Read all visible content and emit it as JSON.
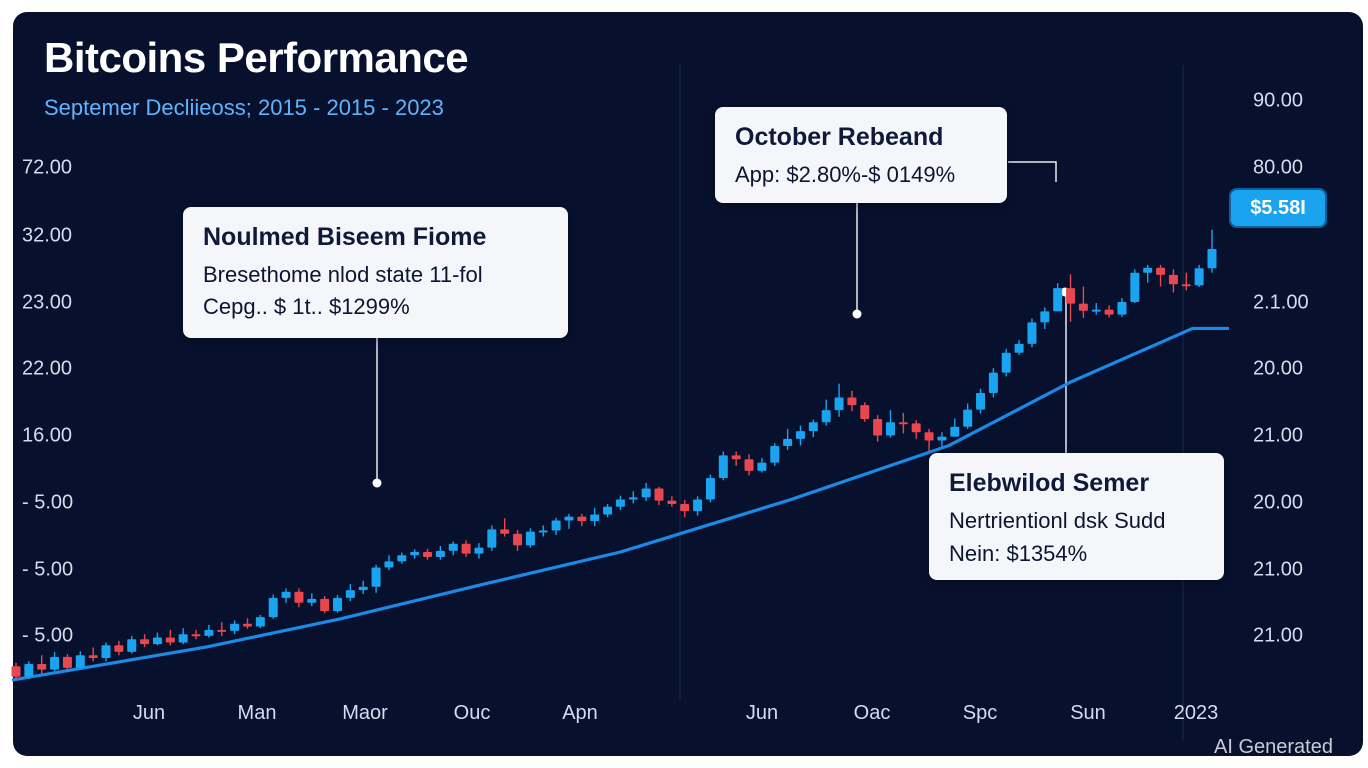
{
  "header": {
    "title": "Bitcoins Performance",
    "subtitle": "Septemer Decliieoss; 2015 - 2015 - 2023"
  },
  "watermark": "AI Generated",
  "price_tag": "$5.58I",
  "colors": {
    "background": "#07112e",
    "up": "#1aa3ee",
    "down": "#e8474f",
    "trend": "#1a8ae6",
    "subtitle": "#5fb3ff"
  },
  "callouts": [
    {
      "title": "Noulmed Biseem Fiome",
      "lines": [
        "Bresethome nlod state 11-fol",
        "Cepg.. $ 1t.. $1299%"
      ]
    },
    {
      "title": "October Rebeand",
      "lines": [
        "App: $2.80%-$ 0149%"
      ]
    },
    {
      "title": "Elebwilod Semer",
      "lines": [
        "Nertrientionl dsk Sudd",
        "Nein: $1354%"
      ]
    }
  ],
  "chart_data": {
    "type": "candlestick",
    "title": "Bitcoins Performance",
    "subtitle": "Septemer Decliieoss; 2015 - 2015 - 2023",
    "grid": false,
    "y_ticks_left": [
      "72.00",
      "32.00",
      "23.00",
      "22.00",
      "16.00",
      "- 5.00",
      "- 5.00",
      "- 5.00"
    ],
    "y_ticks_right": [
      "90.00",
      "80.00",
      "",
      "2.1.00",
      "20.00",
      "21.00",
      "20.00",
      "21.00",
      "21.00"
    ],
    "x_ticks": [
      "Jun",
      "Man",
      "Maor",
      "Ouc",
      "Apn",
      "Jun",
      "Oac",
      "Spc",
      "Sun",
      "2023"
    ],
    "level_scale": "0 = bottom of plot, 100 = top of plot (axis labels are not monotonic)",
    "candles": [
      {
        "o": 4.3,
        "c": 2.4,
        "h": 4.9,
        "l": 2.0
      },
      {
        "o": 2.4,
        "c": 4.7,
        "h": 5.2,
        "l": 2.0
      },
      {
        "o": 4.7,
        "c": 3.7,
        "h": 6.3,
        "l": 2.9
      },
      {
        "o": 3.7,
        "c": 6.0,
        "h": 6.9,
        "l": 3.4
      },
      {
        "o": 6.0,
        "c": 4.0,
        "h": 6.5,
        "l": 3.2
      },
      {
        "o": 4.0,
        "c": 6.3,
        "h": 7.0,
        "l": 3.7
      },
      {
        "o": 6.3,
        "c": 5.8,
        "h": 7.7,
        "l": 5.2
      },
      {
        "o": 5.8,
        "c": 8.1,
        "h": 8.6,
        "l": 5.2
      },
      {
        "o": 8.1,
        "c": 6.9,
        "h": 8.9,
        "l": 6.3
      },
      {
        "o": 6.9,
        "c": 9.2,
        "h": 9.8,
        "l": 6.6
      },
      {
        "o": 9.2,
        "c": 8.3,
        "h": 10.1,
        "l": 7.8
      },
      {
        "o": 8.3,
        "c": 9.5,
        "h": 10.4,
        "l": 8.1
      },
      {
        "o": 9.5,
        "c": 8.6,
        "h": 10.9,
        "l": 8.1
      },
      {
        "o": 8.6,
        "c": 10.1,
        "h": 11.2,
        "l": 8.3
      },
      {
        "o": 10.1,
        "c": 9.8,
        "h": 10.9,
        "l": 9.2
      },
      {
        "o": 9.8,
        "c": 10.9,
        "h": 11.8,
        "l": 9.5
      },
      {
        "o": 10.9,
        "c": 10.7,
        "h": 12.3,
        "l": 9.8
      },
      {
        "o": 10.7,
        "c": 12.0,
        "h": 12.6,
        "l": 10.1
      },
      {
        "o": 12.0,
        "c": 11.5,
        "h": 13.0,
        "l": 11.1
      },
      {
        "o": 11.5,
        "c": 13.2,
        "h": 13.6,
        "l": 11.2
      },
      {
        "o": 13.2,
        "c": 16.7,
        "h": 17.3,
        "l": 12.9
      },
      {
        "o": 16.7,
        "c": 17.8,
        "h": 18.4,
        "l": 15.8
      },
      {
        "o": 17.8,
        "c": 15.8,
        "h": 18.4,
        "l": 15.0
      },
      {
        "o": 15.8,
        "c": 16.5,
        "h": 17.5,
        "l": 15.2
      },
      {
        "o": 16.5,
        "c": 14.3,
        "h": 17.0,
        "l": 13.9
      },
      {
        "o": 14.3,
        "c": 16.7,
        "h": 17.2,
        "l": 14.0
      },
      {
        "o": 16.7,
        "c": 18.1,
        "h": 19.2,
        "l": 16.1
      },
      {
        "o": 18.1,
        "c": 18.7,
        "h": 19.8,
        "l": 17.4
      },
      {
        "o": 18.7,
        "c": 22.2,
        "h": 22.7,
        "l": 17.6
      },
      {
        "o": 22.2,
        "c": 23.3,
        "h": 24.4,
        "l": 21.7
      },
      {
        "o": 23.3,
        "c": 24.4,
        "h": 24.9,
        "l": 22.9
      },
      {
        "o": 24.4,
        "c": 25.0,
        "h": 25.5,
        "l": 23.8
      },
      {
        "o": 25.0,
        "c": 24.1,
        "h": 25.6,
        "l": 23.6
      },
      {
        "o": 24.1,
        "c": 25.2,
        "h": 26.1,
        "l": 23.6
      },
      {
        "o": 25.2,
        "c": 26.5,
        "h": 26.9,
        "l": 24.4
      },
      {
        "o": 26.5,
        "c": 24.7,
        "h": 27.1,
        "l": 24.1
      },
      {
        "o": 24.7,
        "c": 25.8,
        "h": 26.6,
        "l": 23.8
      },
      {
        "o": 25.8,
        "c": 29.1,
        "h": 29.8,
        "l": 25.2
      },
      {
        "o": 29.1,
        "c": 28.3,
        "h": 31.1,
        "l": 27.8
      },
      {
        "o": 28.3,
        "c": 26.2,
        "h": 29.0,
        "l": 25.2
      },
      {
        "o": 26.2,
        "c": 28.7,
        "h": 29.3,
        "l": 25.8
      },
      {
        "o": 28.7,
        "c": 28.9,
        "h": 29.8,
        "l": 27.8
      },
      {
        "o": 28.9,
        "c": 30.7,
        "h": 31.2,
        "l": 28.1
      },
      {
        "o": 30.7,
        "c": 31.4,
        "h": 31.9,
        "l": 29.2
      },
      {
        "o": 31.4,
        "c": 30.6,
        "h": 31.9,
        "l": 29.7
      },
      {
        "o": 30.6,
        "c": 31.8,
        "h": 33.0,
        "l": 29.7
      },
      {
        "o": 31.8,
        "c": 33.2,
        "h": 33.7,
        "l": 31.3
      },
      {
        "o": 33.2,
        "c": 34.5,
        "h": 35.2,
        "l": 32.6
      },
      {
        "o": 34.5,
        "c": 34.9,
        "h": 36.0,
        "l": 33.8
      },
      {
        "o": 34.9,
        "c": 36.5,
        "h": 37.5,
        "l": 34.2
      },
      {
        "o": 36.5,
        "c": 34.3,
        "h": 36.8,
        "l": 33.5
      },
      {
        "o": 34.3,
        "c": 33.7,
        "h": 35.1,
        "l": 33.2
      },
      {
        "o": 33.7,
        "c": 32.4,
        "h": 34.4,
        "l": 31.3
      },
      {
        "o": 32.4,
        "c": 34.5,
        "h": 35.1,
        "l": 31.6
      },
      {
        "o": 34.5,
        "c": 38.4,
        "h": 39.0,
        "l": 34.0
      },
      {
        "o": 38.4,
        "c": 42.5,
        "h": 43.2,
        "l": 38.0
      },
      {
        "o": 42.5,
        "c": 41.8,
        "h": 43.2,
        "l": 40.6
      },
      {
        "o": 41.8,
        "c": 39.7,
        "h": 42.7,
        "l": 38.9
      },
      {
        "o": 39.7,
        "c": 41.2,
        "h": 42.0,
        "l": 39.4
      },
      {
        "o": 41.2,
        "c": 44.2,
        "h": 44.7,
        "l": 40.6
      },
      {
        "o": 44.2,
        "c": 45.5,
        "h": 47.3,
        "l": 43.5
      },
      {
        "o": 45.5,
        "c": 46.9,
        "h": 47.9,
        "l": 44.3
      },
      {
        "o": 46.9,
        "c": 48.5,
        "h": 49.0,
        "l": 45.8
      },
      {
        "o": 48.5,
        "c": 50.7,
        "h": 52.6,
        "l": 47.9
      },
      {
        "o": 50.7,
        "c": 53.0,
        "h": 55.5,
        "l": 49.5
      },
      {
        "o": 53.0,
        "c": 51.6,
        "h": 54.2,
        "l": 50.5
      },
      {
        "o": 51.6,
        "c": 49.1,
        "h": 52.1,
        "l": 48.6
      },
      {
        "o": 49.1,
        "c": 46.1,
        "h": 49.8,
        "l": 45.0
      },
      {
        "o": 46.1,
        "c": 48.5,
        "h": 50.7,
        "l": 45.7
      },
      {
        "o": 48.5,
        "c": 48.3,
        "h": 50.2,
        "l": 46.5
      },
      {
        "o": 48.3,
        "c": 46.7,
        "h": 48.9,
        "l": 45.5
      },
      {
        "o": 46.7,
        "c": 45.2,
        "h": 47.3,
        "l": 43.2
      },
      {
        "o": 45.2,
        "c": 45.9,
        "h": 46.7,
        "l": 44.1
      },
      {
        "o": 45.9,
        "c": 47.7,
        "h": 49.2,
        "l": 45.9
      },
      {
        "o": 47.7,
        "c": 50.8,
        "h": 51.9,
        "l": 47.3
      },
      {
        "o": 50.8,
        "c": 53.8,
        "h": 54.6,
        "l": 50.1
      },
      {
        "o": 53.8,
        "c": 57.5,
        "h": 58.3,
        "l": 53.0
      },
      {
        "o": 57.5,
        "c": 61.1,
        "h": 61.8,
        "l": 56.8
      },
      {
        "o": 61.1,
        "c": 62.7,
        "h": 63.4,
        "l": 60.7
      },
      {
        "o": 62.7,
        "c": 66.6,
        "h": 67.3,
        "l": 62.1
      },
      {
        "o": 66.6,
        "c": 68.6,
        "h": 69.3,
        "l": 65.4
      },
      {
        "o": 68.6,
        "c": 72.8,
        "h": 73.7,
        "l": 68.6
      },
      {
        "o": 72.8,
        "c": 70.0,
        "h": 75.3,
        "l": 66.7
      },
      {
        "o": 70.0,
        "c": 68.7,
        "h": 73.1,
        "l": 67.4
      },
      {
        "o": 68.7,
        "c": 68.9,
        "h": 70.1,
        "l": 68.0
      },
      {
        "o": 68.9,
        "c": 68.0,
        "h": 69.7,
        "l": 67.5
      },
      {
        "o": 68.0,
        "c": 70.3,
        "h": 71.0,
        "l": 67.6
      },
      {
        "o": 70.3,
        "c": 75.6,
        "h": 76.2,
        "l": 70.1
      },
      {
        "o": 75.6,
        "c": 76.5,
        "h": 77.0,
        "l": 73.8
      },
      {
        "o": 76.5,
        "c": 75.2,
        "h": 77.0,
        "l": 73.1
      },
      {
        "o": 75.2,
        "c": 73.5,
        "h": 76.2,
        "l": 72.0
      },
      {
        "o": 73.5,
        "c": 73.3,
        "h": 75.6,
        "l": 72.4
      },
      {
        "o": 73.3,
        "c": 76.4,
        "h": 77.0,
        "l": 73.0
      },
      {
        "o": 76.4,
        "c": 79.9,
        "h": 83.4,
        "l": 75.6
      }
    ],
    "trendline": [
      [
        0,
        1.8
      ],
      [
        0.16,
        7.8
      ],
      [
        0.27,
        12.9
      ],
      [
        0.39,
        19.3
      ],
      [
        0.5,
        25.0
      ],
      [
        0.64,
        34.5
      ],
      [
        0.77,
        44.3
      ],
      [
        0.87,
        55.8
      ],
      [
        0.97,
        65.5
      ],
      [
        1.0,
        65.5
      ]
    ]
  }
}
